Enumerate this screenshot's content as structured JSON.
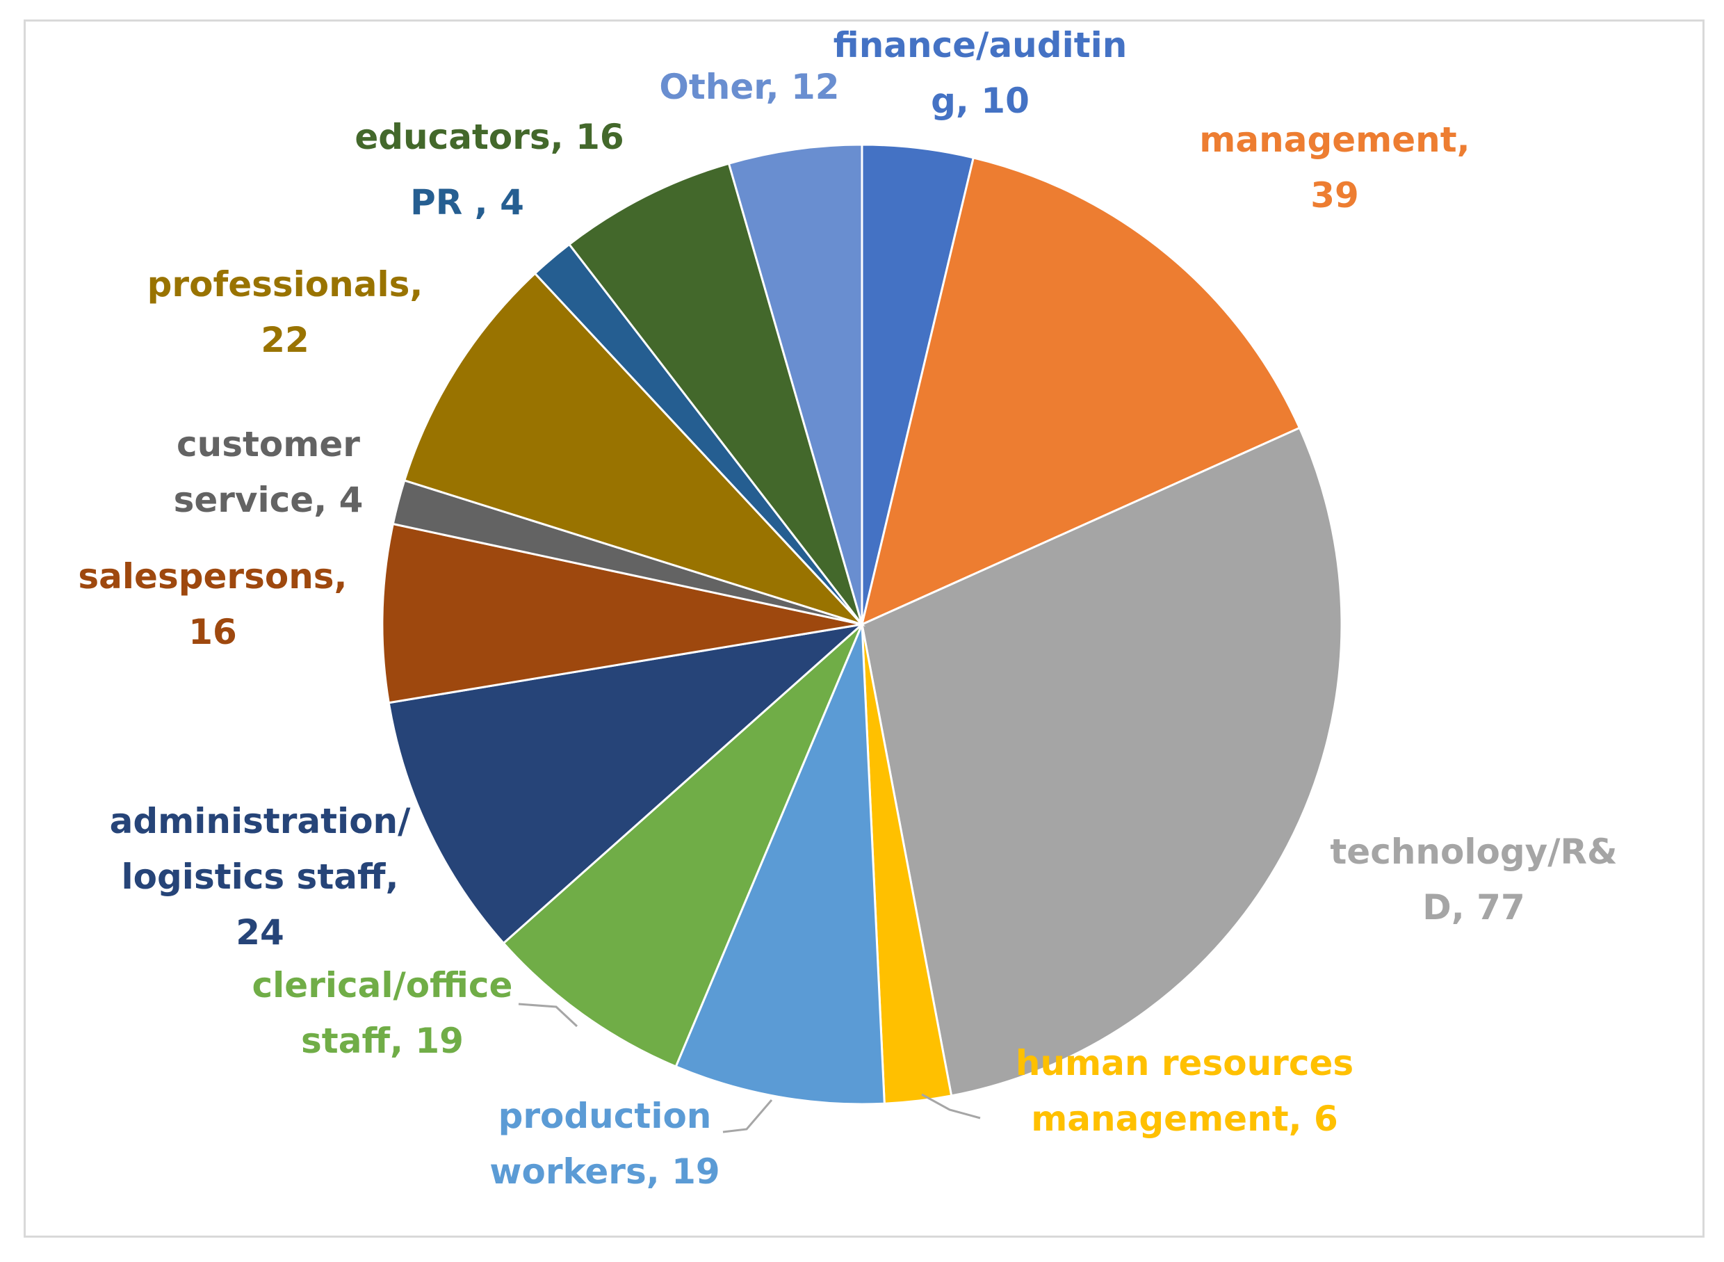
{
  "chart_data": {
    "type": "pie",
    "title": "",
    "slices": [
      {
        "label": "finance/auditin g",
        "value": 10,
        "display_label": [
          "finance/auditin",
          "g, 10"
        ],
        "color": "#4472c4"
      },
      {
        "label": "management",
        "value": 39,
        "display_label": [
          "management,",
          "39"
        ],
        "color": "#ed7d31"
      },
      {
        "label": "technology/R& D",
        "value": 77,
        "display_label": [
          "technology/R&",
          "D, 77"
        ],
        "color": "#a5a5a5"
      },
      {
        "label": "human resources management",
        "value": 6,
        "display_label": [
          "human resources",
          "management, 6"
        ],
        "color": "#ffc000"
      },
      {
        "label": "production workers",
        "value": 19,
        "display_label": [
          "production",
          "workers, 19"
        ],
        "color": "#5b9bd5"
      },
      {
        "label": "clerical/office staff",
        "value": 19,
        "display_label": [
          "clerical/office",
          "staff, 19"
        ],
        "color": "#70ad47"
      },
      {
        "label": "administration/ logistics staff",
        "value": 24,
        "display_label": [
          "administration/",
          "logistics staff,",
          "24"
        ],
        "color": "#264478"
      },
      {
        "label": "salespersons",
        "value": 16,
        "display_label": [
          "salespersons,",
          "16"
        ],
        "color": "#9e480e"
      },
      {
        "label": "customer service",
        "value": 4,
        "display_label": [
          "customer",
          "service, 4"
        ],
        "color": "#636363"
      },
      {
        "label": "professionals",
        "value": 22,
        "display_label": [
          "professionals,",
          "22"
        ],
        "color": "#997300"
      },
      {
        "label": "PR",
        "value": 4,
        "display_label": [
          "PR , 4"
        ],
        "color": "#255e91"
      },
      {
        "label": "educators",
        "value": 16,
        "display_label": [
          "educators, 16"
        ],
        "color": "#43682b"
      },
      {
        "label": "Other",
        "value": 12,
        "display_label": [
          "Other, 12"
        ],
        "color": "#698ed0"
      }
    ],
    "legend": "none",
    "data_labels": "outside"
  }
}
